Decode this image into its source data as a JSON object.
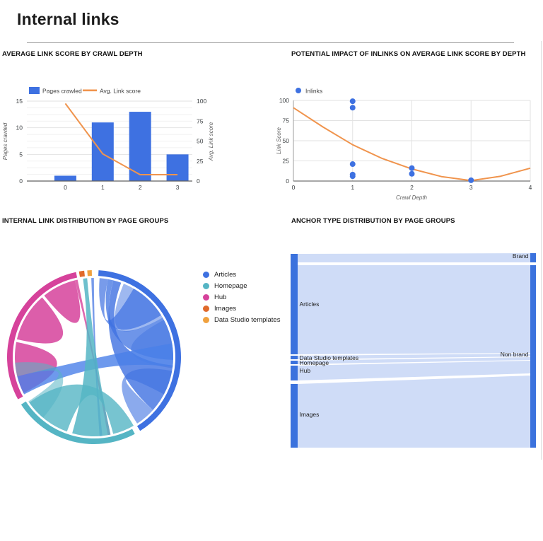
{
  "page": {
    "title": "Internal links"
  },
  "sections": {
    "combo_title": "AVERAGE LINK SCORE BY CRAWL DEPTH",
    "scatter_title": "POTENTIAL IMPACT OF INLINKS ON AVERAGE LINK SCORE BY DEPTH",
    "chord_title": "INTERNAL LINK DISTRIBUTION BY PAGE GROUPS",
    "sankey_title": "ANCHOR TYPE DISTRIBUTION BY PAGE GROUPS"
  },
  "colors": {
    "blue": "#3E71E1",
    "blue_band": "#4a80e8",
    "orange_line": "#F0944D",
    "teal": "#55B5C4",
    "magenta": "#D6429B",
    "images_orange": "#E06A2B",
    "amber": "#F0A13E",
    "sankey_node": "#3b72dd",
    "sankey_link": "#cfdcf7",
    "grid_major": "#e2e2e2",
    "grid_minor": "#f1f1f1",
    "axis_line": "#757575",
    "tick_text": "#3c4043",
    "axis_label": "#616161"
  },
  "chart_data": [
    {
      "id": "combo",
      "type": "bar",
      "title": "AVERAGE LINK SCORE BY CRAWL DEPTH",
      "categories": [
        "0",
        "1",
        "2",
        "3"
      ],
      "series": [
        {
          "name": "Pages crawled",
          "kind": "bar",
          "axis": "left",
          "values": [
            1,
            11,
            13,
            5
          ]
        },
        {
          "name": "Avg. Link score",
          "kind": "line",
          "axis": "right",
          "values": [
            97,
            34,
            8,
            8
          ]
        }
      ],
      "left_axis": {
        "label": "Pages crawled",
        "ticks": [
          0,
          5,
          10,
          15
        ],
        "max": 15
      },
      "right_axis": {
        "label": "Avg. Link score",
        "ticks": [
          0,
          25,
          50,
          75,
          100
        ],
        "max": 100
      },
      "legend_position": "top",
      "grid": true
    },
    {
      "id": "scatter",
      "type": "scatter",
      "title": "POTENTIAL IMPACT OF INLINKS ON AVERAGE LINK SCORE BY DEPTH",
      "legend": "Inlinks",
      "xlabel": "Crawl Depth",
      "ylabel": "Link Score",
      "xlim": [
        0,
        4
      ],
      "ylim": [
        0,
        100
      ],
      "xticks": [
        0,
        1,
        2,
        3,
        4
      ],
      "yticks": [
        0,
        25,
        50,
        75,
        100
      ],
      "points": [
        {
          "x": 1,
          "y": 99
        },
        {
          "x": 1,
          "y": 91
        },
        {
          "x": 1,
          "y": 21
        },
        {
          "x": 1,
          "y": 8
        },
        {
          "x": 1,
          "y": 6
        },
        {
          "x": 2,
          "y": 16
        },
        {
          "x": 2,
          "y": 9
        },
        {
          "x": 3,
          "y": 1
        }
      ],
      "trend": {
        "x": [
          0,
          0.5,
          1,
          1.5,
          2,
          2.5,
          3,
          3.5,
          4
        ],
        "y": [
          91,
          67,
          45,
          28,
          15,
          5.5,
          0.5,
          6,
          16
        ]
      },
      "legend_position": "top",
      "grid": true
    },
    {
      "id": "chord",
      "type": "chord",
      "title": "INTERNAL LINK DISTRIBUTION BY PAGE GROUPS",
      "legend": [
        {
          "label": "Articles",
          "color": "#3E71E1"
        },
        {
          "label": "Homepage",
          "color": "#55B5C4"
        },
        {
          "label": "Hub",
          "color": "#D6429B"
        },
        {
          "label": "Images",
          "color": "#E06A2B"
        },
        {
          "label": "Data Studio templates",
          "color": "#F0A13E"
        }
      ],
      "groups": [
        {
          "name": "Articles",
          "start": 3,
          "end": 148,
          "color": "#3E71E1"
        },
        {
          "name": "Homepage",
          "start": 152,
          "end": 237,
          "color": "#55B5C4"
        },
        {
          "name": "Hub",
          "start": 241,
          "end": 348,
          "color": "#D6429B"
        },
        {
          "name": "Images",
          "start": 350,
          "end": 353.5,
          "color": "#E06A2B"
        },
        {
          "name": "Data Studio templates",
          "start": 355.5,
          "end": 358.5,
          "color": "#F0A13E"
        }
      ],
      "ribbons": [
        {
          "from": [
            243,
            262
          ],
          "to": [
            262,
            281
          ],
          "color": "#D6429B",
          "op": 0.85
        },
        {
          "from": [
            283,
            301
          ],
          "to": [
            301,
            319
          ],
          "color": "#D6429B",
          "op": 0.85
        },
        {
          "from": [
            321,
            335
          ],
          "to": [
            335,
            346
          ],
          "color": "#D6429B",
          "op": 0.85
        },
        {
          "from": [
            346,
            348
          ],
          "to": [
            168,
            170
          ],
          "color": "#D6429B",
          "op": 0.8
        },
        {
          "from": [
            4,
            10
          ],
          "to": [
            30,
            58
          ],
          "color": "#3E71E1",
          "op": 0.7
        },
        {
          "from": [
            10,
            14
          ],
          "to": [
            60,
            92
          ],
          "color": "#3E71E1",
          "op": 0.75
        },
        {
          "from": [
            14,
            20
          ],
          "to": [
            96,
            132
          ],
          "color": "#3E71E1",
          "op": 0.8
        },
        {
          "from": [
            22,
            42
          ],
          "to": [
            42,
            60
          ],
          "color": "#3E71E1",
          "op": 0.5
        },
        {
          "from": [
            62,
            80
          ],
          "to": [
            80,
            98
          ],
          "color": "#3E71E1",
          "op": 0.45
        },
        {
          "from": [
            100,
            118
          ],
          "to": [
            132,
            147
          ],
          "color": "#3E71E1",
          "op": 0.6
        },
        {
          "from": [
            242,
            256
          ],
          "to": [
            80,
            97
          ],
          "color": "#4a80e8",
          "op": 0.8
        },
        {
          "from": [
            358,
            359.9
          ],
          "to": [
            174,
            176
          ],
          "color": "#3E71E1",
          "op": 0.7
        },
        {
          "from": [
            168,
            196
          ],
          "to": [
            352,
            355
          ],
          "color": "#55B5C4",
          "op": 0.85
        },
        {
          "from": [
            200,
            235
          ],
          "to": [
            150,
            166
          ],
          "color": "#55B5C4",
          "op": 0.8
        },
        {
          "from": [
            220,
            236
          ],
          "to": [
            256,
            266
          ],
          "color": "#55B5C4",
          "op": 0.55
        }
      ]
    },
    {
      "id": "sankey",
      "type": "sankey",
      "title": "ANCHOR TYPE DISTRIBUTION BY PAGE GROUPS",
      "left_nodes": [
        {
          "name": "Articles",
          "y0": 9,
          "y1": 151,
          "label_y": 80
        },
        {
          "name": "Data Studio templates",
          "y0": 153,
          "y1": 158,
          "label_y": 156
        },
        {
          "name": "Homepage",
          "y0": 160,
          "y1": 165,
          "label_y": 163
        },
        {
          "name": "Hub",
          "y0": 167,
          "y1": 188,
          "label_y": 174
        },
        {
          "name": "Images",
          "y0": 193,
          "y1": 283,
          "label_y": 236
        }
      ],
      "right_nodes": [
        {
          "name": "Brand",
          "y0": 8,
          "y1": 21,
          "label_y": 12
        },
        {
          "name": "Non brand",
          "y0": 25,
          "y1": 283,
          "label_y": 151
        }
      ],
      "links": [
        {
          "source": "Articles",
          "target": "Brand",
          "ly0": 9,
          "ly1": 21,
          "ry0": 8,
          "ry1": 21
        },
        {
          "source": "Articles",
          "target": "Non brand",
          "ly0": 25,
          "ly1": 151,
          "ry0": 25,
          "ry1": 149
        },
        {
          "source": "Data Studio templates",
          "target": "Non brand",
          "ly0": 153,
          "ly1": 158,
          "ry0": 150,
          "ry1": 154
        },
        {
          "source": "Homepage",
          "target": "Non brand",
          "ly0": 160,
          "ly1": 165,
          "ry0": 155,
          "ry1": 159
        },
        {
          "source": "Hub",
          "target": "Non brand",
          "ly0": 167,
          "ly1": 188,
          "ry0": 160,
          "ry1": 178
        },
        {
          "source": "Images",
          "target": "Non brand",
          "ly0": 193,
          "ly1": 283,
          "ry0": 181,
          "ry1": 283
        }
      ]
    }
  ]
}
